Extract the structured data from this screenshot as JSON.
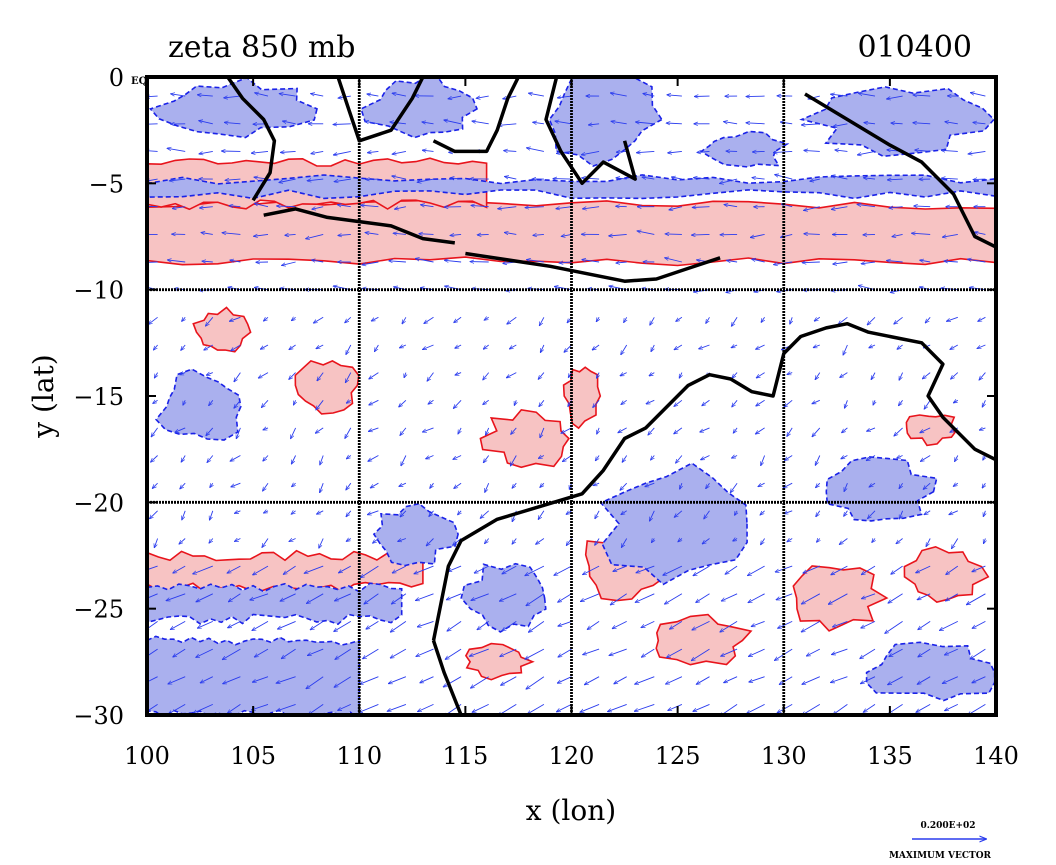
{
  "chart_data": {
    "type": "contour+vector",
    "title": "zeta 850 mb",
    "title_right": "010400",
    "xlabel": "x (lon)",
    "ylabel": "y (lat)",
    "xlim": [
      100,
      140
    ],
    "ylim": [
      -30,
      0
    ],
    "xticks": [
      100,
      105,
      110,
      115,
      120,
      125,
      130,
      135,
      140
    ],
    "yticks": [
      0,
      -5,
      -10,
      -15,
      -20,
      -25,
      -30
    ],
    "xtick_labels": [
      "100",
      "105",
      "110",
      "115",
      "120",
      "125",
      "130",
      "135",
      "140"
    ],
    "ytick_labels": [
      "0",
      "−5",
      "−10",
      "−15",
      "−20",
      "−25",
      "−30"
    ],
    "corner_label": "EQ",
    "grid_lon": [
      110,
      120,
      130
    ],
    "grid_lat": [
      -10,
      -20
    ],
    "vector_legend": {
      "value_label": "0.200E+02",
      "caption": "MAXIMUM VECTOR"
    },
    "colors": {
      "positive_fill": "#f7c3c3",
      "positive_line": "#e8141c",
      "negative_fill": "#aab0ee",
      "negative_line": "#1a22e8",
      "vector": "#2a3cee",
      "coast": "#000000"
    },
    "bands": [
      {
        "sign": "positive",
        "lon": [
          100,
          140
        ],
        "lat": [
          -8.7,
          -6.0
        ]
      },
      {
        "sign": "positive",
        "lon": [
          100,
          116
        ],
        "lat": [
          -6.0,
          -4.0
        ]
      },
      {
        "sign": "negative",
        "lon": [
          100,
          140
        ],
        "lat": [
          -5.5,
          -4.8
        ]
      },
      {
        "sign": "negative",
        "lon": [
          100,
          110
        ],
        "lat": [
          -30,
          -26.5
        ]
      },
      {
        "sign": "positive",
        "lon": [
          100,
          113
        ],
        "lat": [
          -24.0,
          -22.5
        ]
      },
      {
        "sign": "negative",
        "lon": [
          100,
          112
        ],
        "lat": [
          -25.5,
          -24.0
        ]
      }
    ],
    "blobs": [
      {
        "sign": "positive",
        "lon": 108.5,
        "lat": -14.5,
        "rlon": 1.4,
        "rlat": 1.2
      },
      {
        "sign": "positive",
        "lon": 118.0,
        "lat": -17.0,
        "rlon": 2.0,
        "rlat": 1.3
      },
      {
        "sign": "positive",
        "lon": 120.5,
        "lat": -15.0,
        "rlon": 0.8,
        "rlat": 1.3
      },
      {
        "sign": "positive",
        "lon": 122.5,
        "lat": -23.0,
        "rlon": 2.0,
        "rlat": 1.6
      },
      {
        "sign": "positive",
        "lon": 126.0,
        "lat": -26.5,
        "rlon": 2.2,
        "rlat": 1.1
      },
      {
        "sign": "positive",
        "lon": 132.5,
        "lat": -24.5,
        "rlon": 2.0,
        "rlat": 1.5
      },
      {
        "sign": "positive",
        "lon": 137.5,
        "lat": -23.5,
        "rlon": 1.8,
        "rlat": 1.3
      },
      {
        "sign": "positive",
        "lon": 103.5,
        "lat": -12.0,
        "rlon": 1.2,
        "rlat": 1.0
      },
      {
        "sign": "positive",
        "lon": 116.5,
        "lat": -27.5,
        "rlon": 1.5,
        "rlat": 0.8
      },
      {
        "sign": "positive",
        "lon": 137.0,
        "lat": -16.5,
        "rlon": 1.2,
        "rlat": 0.7
      },
      {
        "sign": "negative",
        "lon": 102.5,
        "lat": -15.5,
        "rlon": 2.0,
        "rlat": 1.6
      },
      {
        "sign": "negative",
        "lon": 112.5,
        "lat": -21.5,
        "rlon": 1.8,
        "rlat": 1.4
      },
      {
        "sign": "negative",
        "lon": 117.0,
        "lat": -24.5,
        "rlon": 2.0,
        "rlat": 1.6
      },
      {
        "sign": "negative",
        "lon": 125.0,
        "lat": -21.0,
        "rlon": 3.5,
        "rlat": 2.6
      },
      {
        "sign": "negative",
        "lon": 134.5,
        "lat": -19.5,
        "rlon": 2.5,
        "rlat": 1.6
      },
      {
        "sign": "negative",
        "lon": 137.0,
        "lat": -28.0,
        "rlon": 3.0,
        "rlat": 1.3
      },
      {
        "sign": "negative",
        "lon": 121.5,
        "lat": -2.0,
        "rlon": 2.5,
        "rlat": 2.0
      },
      {
        "sign": "negative",
        "lon": 113.0,
        "lat": -1.5,
        "rlon": 2.5,
        "rlat": 1.5
      },
      {
        "sign": "negative",
        "lon": 135.5,
        "lat": -2.0,
        "rlon": 4.0,
        "rlat": 1.5
      },
      {
        "sign": "negative",
        "lon": 104.0,
        "lat": -1.5,
        "rlon": 3.5,
        "rlat": 1.3
      },
      {
        "sign": "negative",
        "lon": 128.0,
        "lat": -3.5,
        "rlon": 2.0,
        "rlat": 0.9
      }
    ],
    "coastlines": [
      {
        "name": "borneo-south",
        "points": [
          [
            113.0,
            0
          ],
          [
            112.5,
            -1.0
          ],
          [
            111.5,
            -2.5
          ],
          [
            110.0,
            -3.0
          ],
          [
            109.5,
            -1.5
          ],
          [
            109.0,
            0
          ]
        ]
      },
      {
        "name": "borneo-east",
        "points": [
          [
            117.5,
            0
          ],
          [
            117.0,
            -1.0
          ],
          [
            116.5,
            -2.5
          ],
          [
            116.0,
            -3.5
          ],
          [
            114.5,
            -3.5
          ],
          [
            113.5,
            -3.0
          ]
        ]
      },
      {
        "name": "sumatra",
        "points": [
          [
            103.8,
            0
          ],
          [
            104.5,
            -1.0
          ],
          [
            105.5,
            -2.0
          ],
          [
            106.0,
            -3.0
          ],
          [
            105.8,
            -4.5
          ],
          [
            105.0,
            -5.8
          ]
        ]
      },
      {
        "name": "java",
        "points": [
          [
            105.5,
            -6.5
          ],
          [
            107.0,
            -6.2
          ],
          [
            108.5,
            -6.6
          ],
          [
            110.0,
            -6.8
          ],
          [
            111.5,
            -7.0
          ],
          [
            113.0,
            -7.6
          ],
          [
            114.5,
            -7.8
          ]
        ]
      },
      {
        "name": "lesser-sunda",
        "points": [
          [
            115.0,
            -8.3
          ],
          [
            117.0,
            -8.6
          ],
          [
            119.0,
            -8.9
          ],
          [
            121.0,
            -9.3
          ],
          [
            122.5,
            -9.6
          ],
          [
            124.0,
            -9.5
          ],
          [
            125.5,
            -9.0
          ],
          [
            127.0,
            -8.5
          ]
        ]
      },
      {
        "name": "sulawesi",
        "points": [
          [
            119.3,
            0
          ],
          [
            118.8,
            -2.0
          ],
          [
            119.5,
            -3.5
          ],
          [
            120.5,
            -5.0
          ],
          [
            121.5,
            -4.0
          ],
          [
            123.0,
            -4.8
          ],
          [
            122.5,
            -3.0
          ]
        ]
      },
      {
        "name": "new-guinea",
        "points": [
          [
            131.0,
            -0.8
          ],
          [
            133.0,
            -2.0
          ],
          [
            135.0,
            -3.2
          ],
          [
            136.5,
            -4.0
          ],
          [
            138.0,
            -5.5
          ],
          [
            139.0,
            -7.5
          ],
          [
            140.0,
            -8.0
          ]
        ]
      },
      {
        "name": "aus-west",
        "points": [
          [
            113.5,
            -26.5
          ],
          [
            113.8,
            -25.0
          ],
          [
            114.2,
            -23.0
          ],
          [
            114.8,
            -21.8
          ],
          [
            116.5,
            -20.8
          ],
          [
            118.5,
            -20.2
          ],
          [
            120.5,
            -19.6
          ],
          [
            121.5,
            -18.5
          ],
          [
            122.5,
            -17.0
          ],
          [
            123.5,
            -16.5
          ],
          [
            124.5,
            -15.5
          ],
          [
            125.5,
            -14.5
          ],
          [
            126.5,
            -14.0
          ],
          [
            127.5,
            -14.2
          ],
          [
            128.5,
            -14.8
          ],
          [
            129.5,
            -15.0
          ],
          [
            130.0,
            -13.0
          ],
          [
            130.8,
            -12.2
          ],
          [
            132.0,
            -11.8
          ],
          [
            133.0,
            -11.6
          ],
          [
            134.0,
            -12.0
          ],
          [
            135.5,
            -12.3
          ],
          [
            136.5,
            -12.5
          ],
          [
            137.5,
            -13.5
          ],
          [
            136.8,
            -15.0
          ],
          [
            137.5,
            -16.0
          ],
          [
            139.0,
            -17.5
          ],
          [
            140.0,
            -18.0
          ]
        ]
      },
      {
        "name": "aus-southwest",
        "points": [
          [
            113.5,
            -26.5
          ],
          [
            114.0,
            -28.0
          ],
          [
            114.8,
            -30.0
          ]
        ]
      },
      {
        "name": "cape-york",
        "points": [
          [
            140.0,
            -18.0
          ],
          [
            140.5,
            -15.0
          ],
          [
            141.0,
            -12.5
          ]
        ]
      }
    ]
  }
}
